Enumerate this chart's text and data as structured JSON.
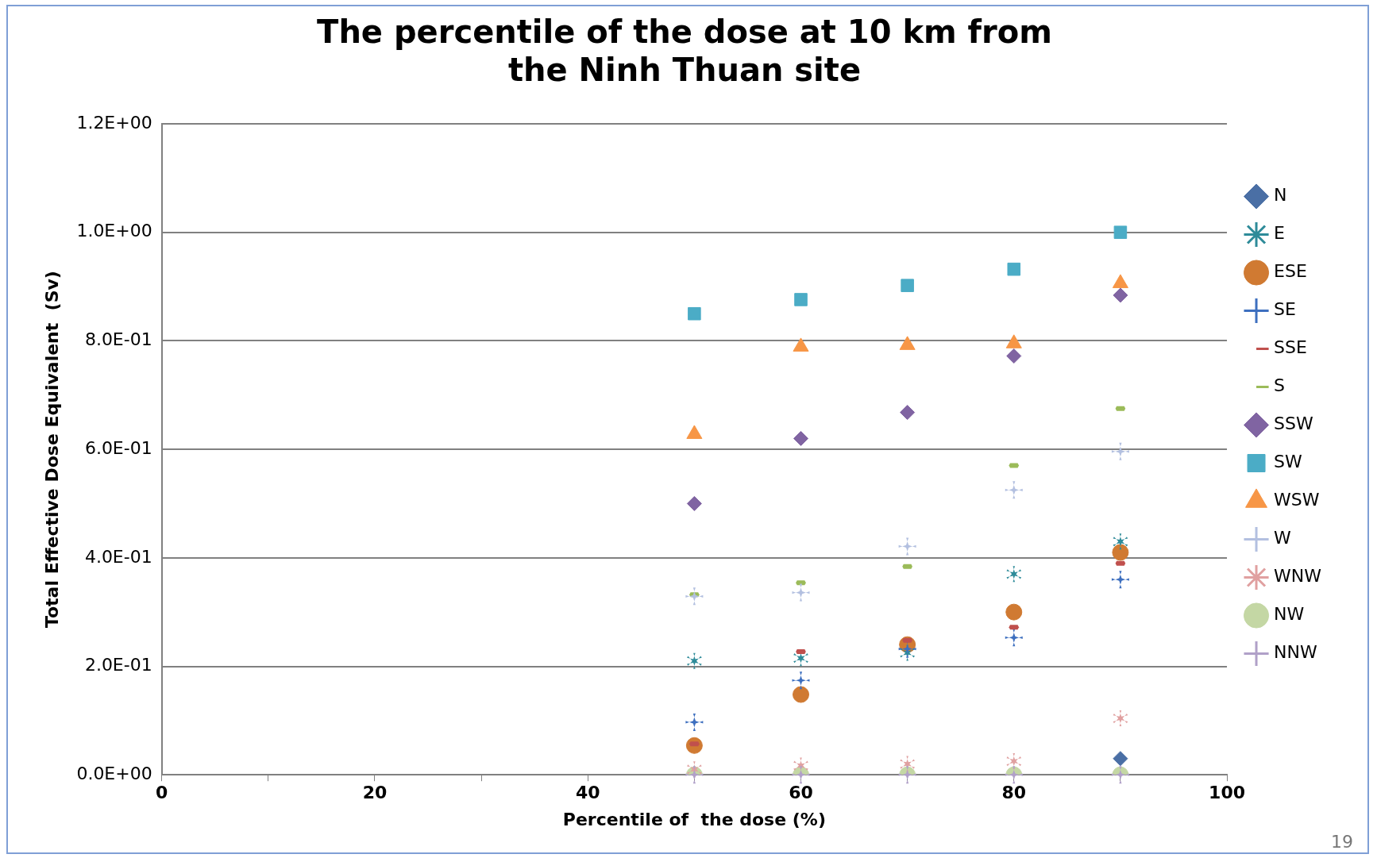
{
  "chart_data": {
    "type": "scatter",
    "title": "The percentile of the dose at 10 km from\nthe Ninh Thuan site",
    "xlabel": "Percentile of  the dose (%)",
    "ylabel": "Total Effective Dose Equivalent  (Sv)",
    "x": [
      50,
      60,
      70,
      80,
      90
    ],
    "xlim": [
      0,
      100
    ],
    "xticks": [
      0,
      {
        "value": 10,
        "label": null
      },
      20,
      {
        "value": 30,
        "label": null
      },
      40,
      {
        "value": 50,
        "label": null
      },
      60,
      {
        "value": 70,
        "label": null
      },
      80,
      {
        "value": 90,
        "label": null
      },
      100
    ],
    "ylim": [
      0,
      1.2
    ],
    "yticks": [
      {
        "value": 0,
        "label": "0.0E+00"
      },
      {
        "value": 0.2,
        "label": "2.0E-01"
      },
      {
        "value": 0.4,
        "label": "4.0E-01"
      },
      {
        "value": 0.6,
        "label": "6.0E-01"
      },
      {
        "value": 0.8,
        "label": "8.0E-01"
      },
      {
        "value": 1.0,
        "label": "1.0E+00"
      },
      {
        "value": 1.2,
        "label": "1.2E+00"
      }
    ],
    "grid": "y",
    "legend": "right",
    "annotations": [
      "19"
    ],
    "series": [
      {
        "name": "N",
        "color": "#4a6fa5",
        "marker": "diamond",
        "values": [
          null,
          null,
          null,
          null,
          0.03
        ]
      },
      {
        "name": "E",
        "color": "#2e8b99",
        "marker": "star",
        "values": [
          0.21,
          0.215,
          0.225,
          0.37,
          0.43
        ]
      },
      {
        "name": "ESE",
        "color": "#d07a32",
        "marker": "circle",
        "values": [
          0.054,
          0.148,
          0.24,
          0.3,
          0.41
        ]
      },
      {
        "name": "SE",
        "color": "#3d6fbf",
        "marker": "cross",
        "values": [
          0.097,
          0.174,
          0.232,
          0.253,
          0.36
        ]
      },
      {
        "name": "SSE",
        "color": "#c0504d",
        "values": [
          0.057,
          0.227,
          0.248,
          0.272,
          0.39
        ]
      },
      {
        "name": "S",
        "color": "#9bbb59",
        "values": [
          0.332,
          0.354,
          0.384,
          0.57,
          0.675
        ]
      },
      {
        "name": "SSW",
        "color": "#8064a2",
        "marker": "diamond",
        "values": [
          0.5,
          0.62,
          0.668,
          0.772,
          0.884
        ]
      },
      {
        "name": "SW",
        "color": "#4bacc6",
        "marker": "square",
        "values": [
          0.85,
          0.876,
          0.902,
          0.932,
          1.0
        ]
      },
      {
        "name": "WSW",
        "color": "#f79646",
        "marker": "triangle",
        "values": [
          0.628,
          0.789,
          0.792,
          0.795,
          0.906
        ]
      },
      {
        "name": "W",
        "color": "#b3c0e0",
        "marker": "cross",
        "values": [
          0.329,
          0.336,
          0.421,
          0.525,
          0.596
        ]
      },
      {
        "name": "WNW",
        "color": "#e0a0a0",
        "marker": "star",
        "values": [
          0.01,
          0.017,
          0.02,
          0.025,
          0.104
        ]
      },
      {
        "name": "NW",
        "color": "#c4d7a4",
        "marker": "circle",
        "values": [
          0,
          0,
          0,
          0,
          0
        ]
      },
      {
        "name": "NNW",
        "color": "#b0a0c8",
        "marker": "cross",
        "values": [
          0,
          0,
          0,
          0,
          0
        ]
      }
    ]
  }
}
